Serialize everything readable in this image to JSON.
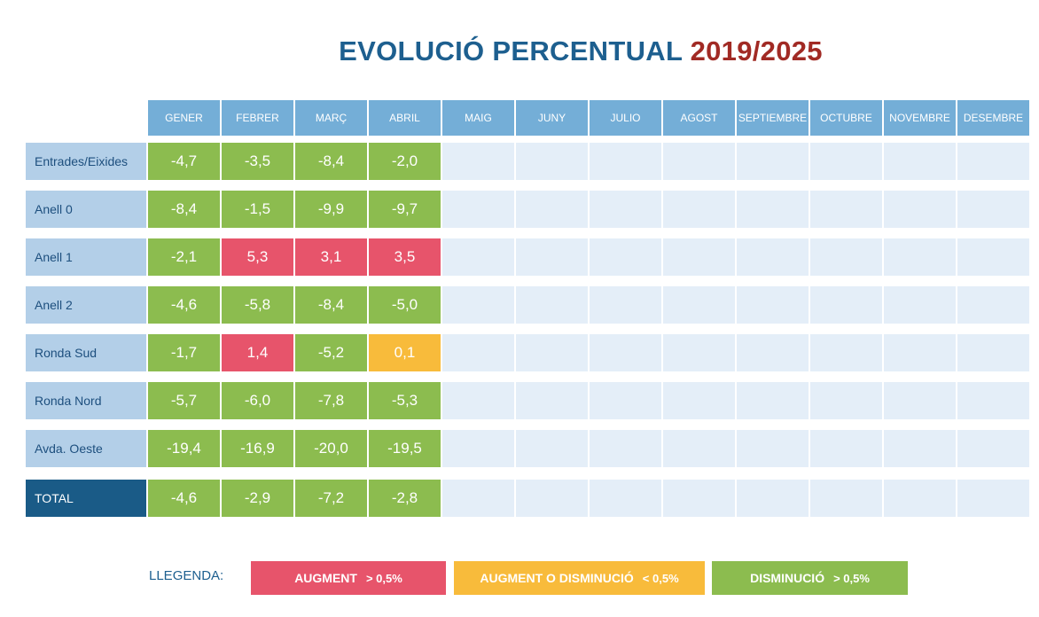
{
  "title": {
    "part1": "EVOLUCIÓ PERCENTUAL",
    "part2": "2019/2025"
  },
  "colors": {
    "green": "#8cbc4f",
    "red": "#e7546b",
    "yellow": "#f8bb3b",
    "empty": "#e4eef8",
    "header": "#74aed7"
  },
  "chart_data": {
    "type": "table",
    "title": "EVOLUCIÓ PERCENTUAL 2019/2025",
    "columns": [
      "GENER",
      "FEBRER",
      "MARÇ",
      "ABRIL",
      "MAIG",
      "JUNY",
      "JULIO",
      "AGOST",
      "SEPTIEMBRE",
      "OCTUBRE",
      "NOVEMBRE",
      "DESEMBRE"
    ],
    "rows": [
      {
        "label": "Entrades/Eixides",
        "values": [
          "-4,7",
          "-3,5",
          "-8,4",
          "-2,0"
        ],
        "colors": [
          "green",
          "green",
          "green",
          "green"
        ]
      },
      {
        "label": "Anell 0",
        "values": [
          "-8,4",
          "-1,5",
          "-9,9",
          "-9,7"
        ],
        "colors": [
          "green",
          "green",
          "green",
          "green"
        ]
      },
      {
        "label": "Anell 1",
        "values": [
          "-2,1",
          "5,3",
          "3,1",
          "3,5"
        ],
        "colors": [
          "green",
          "red",
          "red",
          "red"
        ]
      },
      {
        "label": "Anell 2",
        "values": [
          "-4,6",
          "-5,8",
          "-8,4",
          "-5,0"
        ],
        "colors": [
          "green",
          "green",
          "green",
          "green"
        ]
      },
      {
        "label": "Ronda Sud",
        "values": [
          "-1,7",
          "1,4",
          "-5,2",
          "0,1"
        ],
        "colors": [
          "green",
          "red",
          "green",
          "yellow"
        ]
      },
      {
        "label": "Ronda Nord",
        "values": [
          "-5,7",
          "-6,0",
          "-7,8",
          "-5,3"
        ],
        "colors": [
          "green",
          "green",
          "green",
          "green"
        ]
      },
      {
        "label": "Avda. Oeste",
        "values": [
          "-19,4",
          "-16,9",
          "-20,0",
          "-19,5"
        ],
        "colors": [
          "green",
          "green",
          "green",
          "green"
        ]
      },
      {
        "label": "TOTAL",
        "values": [
          "-4,6",
          "-2,9",
          "-7,2",
          "-2,8"
        ],
        "colors": [
          "green",
          "green",
          "green",
          "green"
        ],
        "total": true
      }
    ]
  },
  "legend": {
    "label": "LLEGENDA:",
    "items": [
      {
        "text": "AUGMENT",
        "threshold": "> 0,5%",
        "color": "red"
      },
      {
        "text": "AUGMENT O DISMINUCIÓ",
        "threshold": "< 0,5%",
        "color": "yellow"
      },
      {
        "text": "DISMINUCIÓ",
        "threshold": "> 0,5%",
        "color": "green"
      }
    ]
  }
}
